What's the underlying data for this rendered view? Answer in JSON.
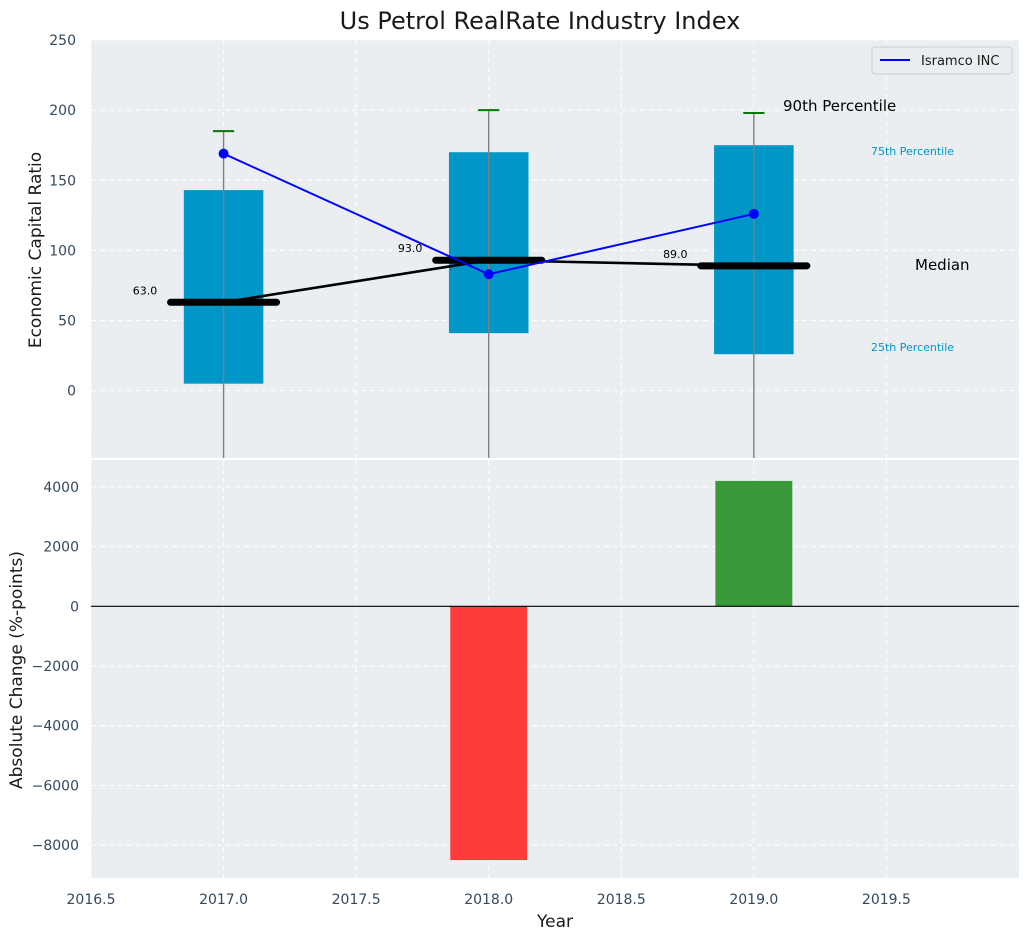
{
  "chart_data": [
    {
      "type": "box",
      "title": "Us Petrol RealRate Industry Index",
      "ylabel": "Economic Capital Ratio",
      "xlabel": "",
      "ylim": [
        -48,
        250
      ],
      "xlim": [
        2016.5,
        2020.0
      ],
      "yticks": [
        0,
        50,
        100,
        150,
        200,
        250
      ],
      "grid": true,
      "legend_position": "top-right",
      "x": [
        2017,
        2018,
        2019
      ],
      "percentile_25": [
        5,
        41,
        26
      ],
      "percentile_75": [
        143,
        170,
        175
      ],
      "percentile_90": [
        185,
        200,
        198
      ],
      "median": [
        63,
        93,
        89
      ],
      "median_labels": [
        "63.0",
        "93.0",
        "89.0"
      ],
      "series": [
        {
          "name": "Isramco INC",
          "color": "#0000ff",
          "values": [
            169,
            83,
            126
          ]
        }
      ],
      "annotations": {
        "p90": "90th Percentile",
        "p75": "75th Percentile",
        "median": "Median",
        "p25": "25th Percentile"
      },
      "colors": {
        "box": "#0096c7",
        "cap": "#007a00",
        "background": "#eaeef0"
      }
    },
    {
      "type": "bar",
      "ylabel": "Absolute Change (%-points)",
      "xlabel": "Year",
      "ylim": [
        -9100,
        4900
      ],
      "xlim": [
        2016.5,
        2020.0
      ],
      "yticks": [
        -8000,
        -6000,
        -4000,
        -2000,
        0,
        2000,
        4000
      ],
      "xticks": [
        2016.5,
        2017.0,
        2017.5,
        2018.0,
        2018.5,
        2019.0,
        2019.5
      ],
      "xtick_labels": [
        "2016.5",
        "2017.0",
        "2017.5",
        "2018.0",
        "2018.5",
        "2019.0",
        "2019.5"
      ],
      "ytick_labels": [
        "−8000",
        "−6000",
        "−4000",
        "−2000",
        "0",
        "2000",
        "4000"
      ],
      "grid": true,
      "x": [
        2018,
        2019
      ],
      "values": [
        -8500,
        4200
      ],
      "colors": {
        "negative": "#ff3c3c",
        "positive": "#3a9a3a"
      }
    }
  ]
}
